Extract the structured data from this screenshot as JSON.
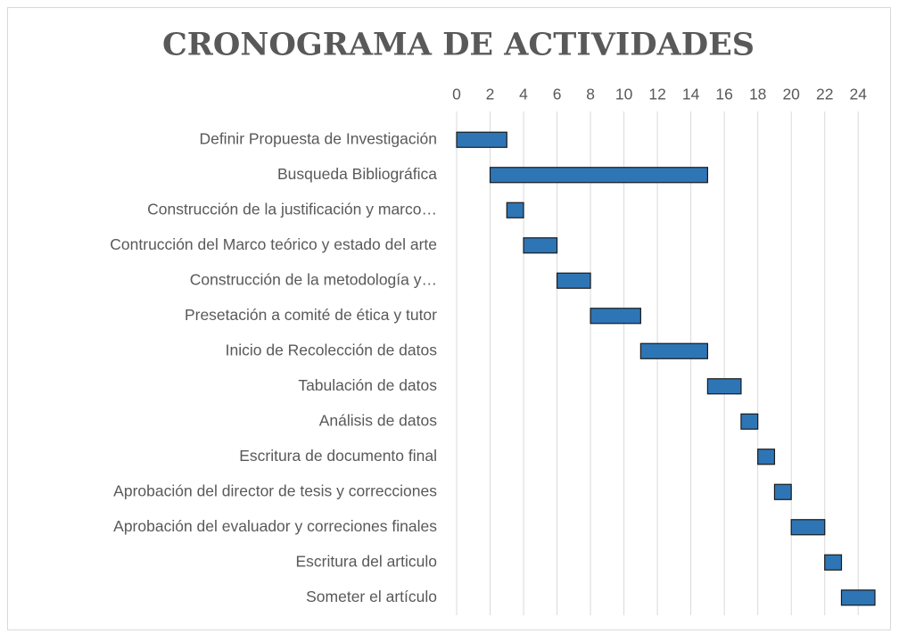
{
  "chart_data": {
    "type": "gantt",
    "title": "CRONOGRAMA DE ACTIVIDADES",
    "categories": [
      "Definir Propuesta de Investigación",
      "Busqueda Bibliográfica",
      "Construcción de la justificación y marco…",
      "Contrucción del Marco teórico y estado del arte",
      "Construcción de la metodología y…",
      "Presetación a comité de ética y tutor",
      "Inicio de Recolección de datos",
      "Tabulación de datos",
      "Análisis de datos",
      "Escritura de documento final",
      "Aprobación del director de tesis  y correcciones",
      "Aprobación del evaluador y correciones finales",
      "Escritura del articulo",
      "Someter el artículo"
    ],
    "start": [
      0,
      2,
      3,
      4,
      6,
      8,
      11,
      15,
      17,
      18,
      19,
      20,
      22,
      23
    ],
    "duration": [
      3,
      13,
      1,
      2,
      2,
      3,
      4,
      2,
      1,
      1,
      1,
      2,
      1,
      2
    ],
    "color": "#2e75b6",
    "xlim": [
      0,
      25
    ],
    "xticks": [
      0,
      2,
      4,
      6,
      8,
      10,
      12,
      14,
      16,
      18,
      20,
      22,
      24
    ],
    "grid": true
  }
}
